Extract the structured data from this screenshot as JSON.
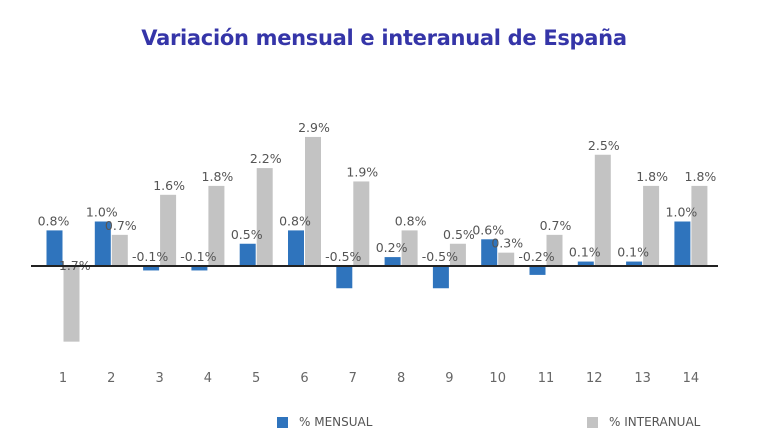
{
  "title": "Variación mensual e interanual de España",
  "colors": {
    "mensual": "#2f74bd",
    "interanual": "#c3c3c3",
    "title": "#3535a8",
    "axis": "#222222"
  },
  "chart_data": {
    "type": "bar",
    "title": "Variación mensual e interanual de España",
    "categories": [
      "1",
      "2",
      "3",
      "4",
      "5",
      "6",
      "7",
      "8",
      "9",
      "10",
      "11",
      "12",
      "13",
      "14"
    ],
    "series": [
      {
        "name": "% MENSUAL",
        "values": [
          0.8,
          1.0,
          -0.1,
          -0.1,
          0.5,
          0.8,
          -0.5,
          0.2,
          -0.5,
          0.6,
          -0.2,
          0.1,
          0.1,
          1.0
        ],
        "labels": [
          "0.8%",
          "1.0%",
          "-0.1%",
          "-0.1%",
          "0.5%",
          "0.8%",
          "-0.5%",
          "0.2%",
          "-0.5%",
          "0.6%",
          "-0.2%",
          "0.1%",
          "0.1%",
          "1.0%"
        ]
      },
      {
        "name": "% INTERANUAL",
        "values": [
          -1.7,
          0.7,
          1.6,
          1.8,
          2.2,
          2.9,
          1.9,
          0.8,
          0.5,
          0.3,
          0.7,
          2.5,
          1.8,
          1.8
        ],
        "labels": [
          "-1.7%",
          "0.7%",
          "1.6%",
          "1.8%",
          "2.2%",
          "2.9%",
          "1.9%",
          "0.8%",
          "0.5%",
          "0.3%",
          "0.7%",
          "2.5%",
          "1.8%",
          "1.8%"
        ]
      }
    ],
    "legend_position": "bottom",
    "grid": false
  }
}
